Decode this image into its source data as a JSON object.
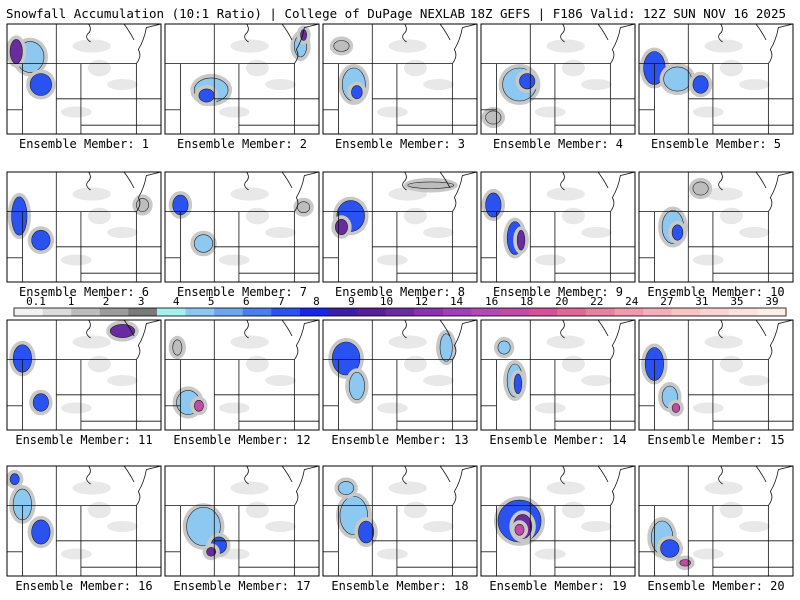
{
  "header": {
    "title": "Snowfall Accumulation (10:1 Ratio) | College of DuPage NEXLAB",
    "run_info": "18Z GEFS | F186 Valid: 12Z SUN NOV 16 2025"
  },
  "panels": [
    {
      "label": "Ensemble Member: 1",
      "blobs": [
        [
          0.15,
          0.3,
          0.18,
          0.28,
          3
        ],
        [
          0.22,
          0.55,
          0.14,
          0.2,
          4
        ],
        [
          0.06,
          0.25,
          0.08,
          0.22,
          5
        ]
      ]
    },
    {
      "label": "Ensemble Member: 2",
      "blobs": [
        [
          0.3,
          0.6,
          0.22,
          0.22,
          3
        ],
        [
          0.27,
          0.65,
          0.1,
          0.12,
          4
        ],
        [
          0.88,
          0.2,
          0.08,
          0.2,
          3
        ],
        [
          0.9,
          0.1,
          0.04,
          0.1,
          5
        ]
      ]
    },
    {
      "label": "Ensemble Member: 3",
      "blobs": [
        [
          0.2,
          0.55,
          0.15,
          0.3,
          3
        ],
        [
          0.22,
          0.62,
          0.07,
          0.12,
          4
        ],
        [
          0.12,
          0.2,
          0.1,
          0.1,
          2
        ]
      ]
    },
    {
      "label": "Ensemble Member: 4",
      "blobs": [
        [
          0.25,
          0.55,
          0.22,
          0.3,
          3
        ],
        [
          0.3,
          0.52,
          0.1,
          0.14,
          4
        ],
        [
          0.08,
          0.85,
          0.1,
          0.12,
          2
        ]
      ]
    },
    {
      "label": "Ensemble Member: 5",
      "blobs": [
        [
          0.1,
          0.4,
          0.14,
          0.3,
          4
        ],
        [
          0.25,
          0.5,
          0.18,
          0.22,
          3
        ],
        [
          0.4,
          0.55,
          0.1,
          0.16,
          4
        ]
      ]
    },
    {
      "label": "Ensemble Member: 6",
      "blobs": [
        [
          0.08,
          0.4,
          0.1,
          0.35,
          4
        ],
        [
          0.22,
          0.62,
          0.12,
          0.18,
          4
        ],
        [
          0.88,
          0.3,
          0.08,
          0.12,
          2
        ]
      ]
    },
    {
      "label": "Ensemble Member: 7",
      "blobs": [
        [
          0.1,
          0.3,
          0.1,
          0.18,
          4
        ],
        [
          0.25,
          0.65,
          0.12,
          0.16,
          3
        ],
        [
          0.9,
          0.32,
          0.08,
          0.1,
          2
        ]
      ]
    },
    {
      "label": "Ensemble Member: 8",
      "blobs": [
        [
          0.18,
          0.4,
          0.18,
          0.28,
          4
        ],
        [
          0.12,
          0.5,
          0.08,
          0.14,
          5
        ],
        [
          0.7,
          0.12,
          0.3,
          0.06,
          2
        ]
      ]
    },
    {
      "label": "Ensemble Member: 9",
      "blobs": [
        [
          0.08,
          0.3,
          0.1,
          0.22,
          4
        ],
        [
          0.22,
          0.6,
          0.1,
          0.3,
          4
        ],
        [
          0.26,
          0.62,
          0.05,
          0.18,
          5
        ]
      ]
    },
    {
      "label": "Ensemble Member: 10",
      "blobs": [
        [
          0.22,
          0.5,
          0.14,
          0.3,
          3
        ],
        [
          0.25,
          0.55,
          0.07,
          0.14,
          4
        ],
        [
          0.4,
          0.15,
          0.1,
          0.12,
          2
        ]
      ]
    },
    {
      "label": "Ensemble Member: 11",
      "blobs": [
        [
          0.1,
          0.35,
          0.12,
          0.25,
          4
        ],
        [
          0.22,
          0.75,
          0.1,
          0.16,
          4
        ],
        [
          0.75,
          0.1,
          0.16,
          0.12,
          5
        ]
      ]
    },
    {
      "label": "Ensemble Member: 12",
      "blobs": [
        [
          0.15,
          0.75,
          0.15,
          0.22,
          3
        ],
        [
          0.22,
          0.78,
          0.06,
          0.1,
          6
        ],
        [
          0.08,
          0.25,
          0.06,
          0.14,
          2
        ]
      ]
    },
    {
      "label": "Ensemble Member: 13",
      "blobs": [
        [
          0.15,
          0.35,
          0.18,
          0.3,
          4
        ],
        [
          0.22,
          0.6,
          0.1,
          0.25,
          3
        ],
        [
          0.8,
          0.25,
          0.08,
          0.25,
          3
        ]
      ]
    },
    {
      "label": "Ensemble Member: 14",
      "blobs": [
        [
          0.15,
          0.25,
          0.08,
          0.12,
          3
        ],
        [
          0.22,
          0.55,
          0.1,
          0.3,
          3
        ],
        [
          0.24,
          0.58,
          0.05,
          0.18,
          4
        ]
      ]
    },
    {
      "label": "Ensemble Member: 15",
      "blobs": [
        [
          0.1,
          0.4,
          0.12,
          0.3,
          4
        ],
        [
          0.2,
          0.7,
          0.1,
          0.2,
          3
        ],
        [
          0.24,
          0.8,
          0.05,
          0.08,
          6
        ]
      ]
    },
    {
      "label": "Ensemble Member: 16",
      "blobs": [
        [
          0.1,
          0.35,
          0.12,
          0.28,
          3
        ],
        [
          0.22,
          0.6,
          0.12,
          0.22,
          4
        ],
        [
          0.05,
          0.12,
          0.06,
          0.1,
          4
        ]
      ]
    },
    {
      "label": "Ensemble Member: 17",
      "blobs": [
        [
          0.25,
          0.55,
          0.22,
          0.35,
          3
        ],
        [
          0.35,
          0.72,
          0.1,
          0.15,
          4
        ],
        [
          0.3,
          0.78,
          0.06,
          0.08,
          5
        ]
      ]
    },
    {
      "label": "Ensemble Member: 18",
      "blobs": [
        [
          0.2,
          0.45,
          0.18,
          0.35,
          3
        ],
        [
          0.28,
          0.6,
          0.1,
          0.2,
          4
        ],
        [
          0.15,
          0.2,
          0.1,
          0.12,
          3
        ]
      ]
    },
    {
      "label": "Ensemble Member: 19",
      "blobs": [
        [
          0.25,
          0.5,
          0.28,
          0.38,
          4
        ],
        [
          0.27,
          0.55,
          0.12,
          0.22,
          5
        ],
        [
          0.25,
          0.58,
          0.06,
          0.1,
          6
        ]
      ]
    },
    {
      "label": "Ensemble Member: 20",
      "blobs": [
        [
          0.15,
          0.65,
          0.14,
          0.3,
          3
        ],
        [
          0.2,
          0.75,
          0.12,
          0.16,
          4
        ],
        [
          0.3,
          0.88,
          0.07,
          0.06,
          6
        ]
      ]
    }
  ],
  "colorbar": {
    "ticks": [
      "0.1",
      "1",
      "2",
      "3",
      "4",
      "5",
      "6",
      "7",
      "8",
      "9",
      "10",
      "12",
      "14",
      "16",
      "18",
      "20",
      "22",
      "24",
      "27",
      "31",
      "35",
      "39"
    ],
    "colors": [
      "#f2f2f2",
      "#dcdcdc",
      "#bcbcbc",
      "#9c9c9c",
      "#7a7a7a",
      "#a4f0f0",
      "#8cc8f0",
      "#6ea6f0",
      "#4a7ef0",
      "#2a52f0",
      "#1a26e6",
      "#3c1ea6",
      "#581e98",
      "#6a2aa0",
      "#8a32b0",
      "#a040b8",
      "#b04ab4",
      "#c24aa6",
      "#d45098",
      "#de6896",
      "#e880a0",
      "#f09aae",
      "#f4b0ba",
      "#f8c4c6",
      "#fad4d2",
      "#fce2dc",
      "#fdeee6"
    ]
  }
}
